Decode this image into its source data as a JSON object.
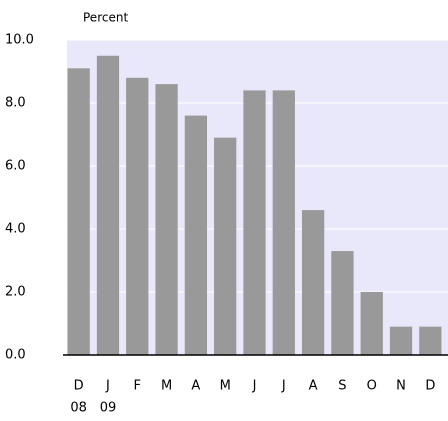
{
  "chart_data": {
    "type": "bar",
    "y_axis_label": "Percent",
    "categories": [
      "D",
      "J",
      "F",
      "M",
      "A",
      "M",
      "J",
      "J",
      "A",
      "S",
      "O",
      "N",
      "D"
    ],
    "category_sublabels": [
      "08",
      "09",
      null,
      null,
      null,
      null,
      null,
      null,
      null,
      null,
      null,
      null,
      null
    ],
    "values": [
      9.1,
      9.5,
      8.8,
      8.6,
      7.6,
      6.9,
      8.4,
      8.4,
      4.6,
      3.3,
      2.0,
      0.9,
      0.9
    ],
    "color": "#999999",
    "ylim": [
      0,
      10
    ],
    "yticks": [
      {
        "value": 0,
        "label": "0.0"
      },
      {
        "value": 2,
        "label": "2.0"
      },
      {
        "value": 4,
        "label": "4.0"
      },
      {
        "value": 6,
        "label": "6.0"
      },
      {
        "value": 8,
        "label": "8.0"
      },
      {
        "value": 10,
        "label": "10.0"
      }
    ],
    "grid": true
  }
}
